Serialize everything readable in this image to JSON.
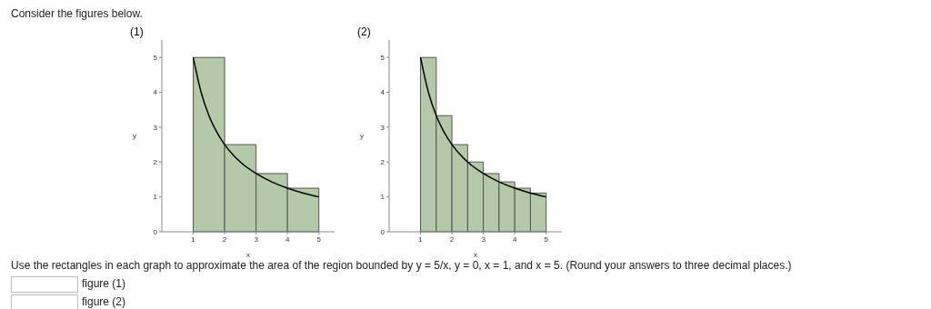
{
  "chart_data": [
    {
      "type": "histogram",
      "title": "(1)",
      "xlabel": "x",
      "ylabel": "y",
      "bins": [
        1,
        2,
        3,
        4,
        5
      ],
      "values": [
        5,
        2.5,
        1.67,
        1.25
      ],
      "color": "#b3c9a7",
      "xlim": [
        0,
        5.5
      ],
      "ylim": [
        0,
        5.5
      ],
      "xticks": [
        1,
        2,
        3,
        4,
        5
      ],
      "yticks": [
        0,
        1,
        2,
        3,
        4,
        5
      ],
      "series": [
        {
          "type": "line",
          "color": "#000000",
          "x": [
            1,
            1.25,
            1.5,
            1.75,
            2,
            2.5,
            3,
            3.5,
            4,
            4.5,
            5
          ],
          "values": [
            5,
            4,
            3.33,
            2.86,
            2.5,
            2,
            1.67,
            1.43,
            1.25,
            1.11,
            1
          ]
        }
      ]
    },
    {
      "type": "histogram",
      "title": "(2)",
      "xlabel": "x",
      "ylabel": "y",
      "bins": [
        1,
        1.5,
        2,
        2.5,
        3,
        3.5,
        4,
        4.5,
        5
      ],
      "values": [
        5,
        3.33,
        2.5,
        2,
        1.67,
        1.43,
        1.25,
        1.11
      ],
      "color": "#b3c9a7",
      "xlim": [
        0,
        5.5
      ],
      "ylim": [
        0,
        5.5
      ],
      "xticks": [
        1,
        2,
        3,
        4,
        5
      ],
      "yticks": [
        0,
        1,
        2,
        3,
        4,
        5
      ],
      "series": [
        {
          "type": "line",
          "color": "#000000",
          "x": [
            1,
            1.25,
            1.5,
            1.75,
            2,
            2.5,
            3,
            3.5,
            4,
            4.5,
            5
          ],
          "values": [
            5,
            4,
            3.33,
            2.86,
            2.5,
            2,
            1.67,
            1.43,
            1.25,
            1.11,
            1
          ]
        }
      ]
    },
    {
      "type": "other",
      "annotations": [
        "Consider the figures below.",
        "Use the rectangles in each graph to approximate the area of the region bounded by y = 5/x, y = 0, x = 1, and x = 5. (Round your answers to three decimal places.)",
        "figure (1)",
        "figure (2)"
      ]
    }
  ]
}
